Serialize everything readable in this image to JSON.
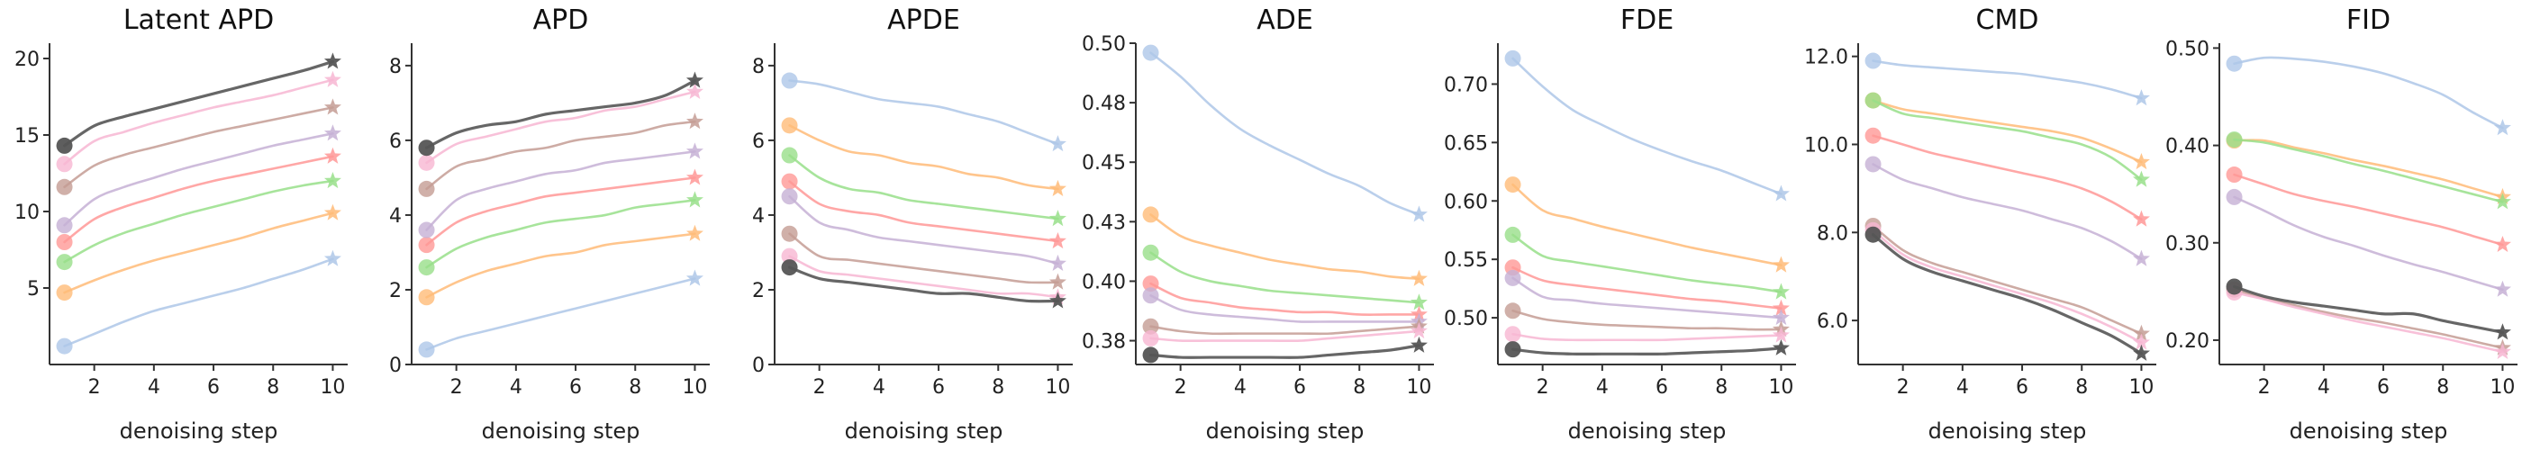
{
  "figure": {
    "xlabel": "denoising step"
  },
  "series_colors": [
    "#aec7e8",
    "#ffbb78",
    "#98df8a",
    "#ff9896",
    "#c5b0d5",
    "#c49c94",
    "#f7b6d2",
    "#555555"
  ],
  "chart_data": [
    {
      "type": "line",
      "title": "Latent APD",
      "xlabel": "denoising step",
      "ylabel": "",
      "x": [
        1,
        2,
        3,
        4,
        5,
        6,
        7,
        8,
        9,
        10
      ],
      "xlim": [
        0.5,
        10.5
      ],
      "ylim": [
        0,
        21
      ],
      "yticks": [
        5,
        10,
        15,
        20
      ],
      "ytick_labels": [
        "5",
        "10",
        "15",
        "20"
      ],
      "xticks": [
        2,
        4,
        6,
        8,
        10
      ],
      "xtick_labels": [
        "2",
        "4",
        "6",
        "8",
        "10"
      ],
      "series": [
        {
          "values": [
            1.2,
            2.0,
            2.8,
            3.5,
            4.0,
            4.5,
            5.0,
            5.6,
            6.2,
            6.9
          ]
        },
        {
          "values": [
            4.7,
            5.5,
            6.2,
            6.8,
            7.3,
            7.8,
            8.3,
            8.9,
            9.4,
            9.9
          ]
        },
        {
          "values": [
            6.7,
            7.8,
            8.6,
            9.2,
            9.8,
            10.3,
            10.8,
            11.3,
            11.7,
            12.0
          ]
        },
        {
          "values": [
            8.0,
            9.5,
            10.3,
            10.9,
            11.5,
            12.0,
            12.4,
            12.8,
            13.2,
            13.6
          ]
        },
        {
          "values": [
            9.1,
            10.8,
            11.6,
            12.2,
            12.8,
            13.3,
            13.8,
            14.3,
            14.7,
            15.1
          ]
        },
        {
          "values": [
            11.6,
            13.0,
            13.7,
            14.2,
            14.7,
            15.2,
            15.6,
            16.0,
            16.4,
            16.8
          ]
        },
        {
          "values": [
            13.1,
            14.6,
            15.2,
            15.8,
            16.3,
            16.8,
            17.2,
            17.6,
            18.1,
            18.6
          ]
        },
        {
          "values": [
            14.3,
            15.6,
            16.2,
            16.7,
            17.2,
            17.7,
            18.2,
            18.7,
            19.2,
            19.8
          ]
        }
      ]
    },
    {
      "type": "line",
      "title": "APD",
      "xlabel": "denoising step",
      "ylabel": "",
      "x": [
        1,
        2,
        3,
        4,
        5,
        6,
        7,
        8,
        9,
        10
      ],
      "xlim": [
        0.5,
        10.5
      ],
      "ylim": [
        0,
        8.6
      ],
      "yticks": [
        0,
        2,
        4,
        6,
        8
      ],
      "ytick_labels": [
        "0",
        "2",
        "4",
        "6",
        "8"
      ],
      "xticks": [
        2,
        4,
        6,
        8,
        10
      ],
      "xtick_labels": [
        "2",
        "4",
        "6",
        "8",
        "10"
      ],
      "series": [
        {
          "values": [
            0.4,
            0.7,
            0.9,
            1.1,
            1.3,
            1.5,
            1.7,
            1.9,
            2.1,
            2.3
          ]
        },
        {
          "values": [
            1.8,
            2.2,
            2.5,
            2.7,
            2.9,
            3.0,
            3.2,
            3.3,
            3.4,
            3.5
          ]
        },
        {
          "values": [
            2.6,
            3.1,
            3.4,
            3.6,
            3.8,
            3.9,
            4.0,
            4.2,
            4.3,
            4.4
          ]
        },
        {
          "values": [
            3.2,
            3.8,
            4.1,
            4.3,
            4.5,
            4.6,
            4.7,
            4.8,
            4.9,
            5.0
          ]
        },
        {
          "values": [
            3.6,
            4.4,
            4.7,
            4.9,
            5.1,
            5.2,
            5.4,
            5.5,
            5.6,
            5.7
          ]
        },
        {
          "values": [
            4.7,
            5.3,
            5.5,
            5.7,
            5.8,
            6.0,
            6.1,
            6.2,
            6.4,
            6.5
          ]
        },
        {
          "values": [
            5.4,
            5.9,
            6.1,
            6.3,
            6.5,
            6.6,
            6.8,
            6.9,
            7.1,
            7.3
          ]
        },
        {
          "values": [
            5.8,
            6.2,
            6.4,
            6.5,
            6.7,
            6.8,
            6.9,
            7.0,
            7.2,
            7.6
          ]
        }
      ]
    },
    {
      "type": "line",
      "title": "APDE",
      "xlabel": "denoising step",
      "ylabel": "",
      "x": [
        1,
        2,
        3,
        4,
        5,
        6,
        7,
        8,
        9,
        10
      ],
      "xlim": [
        0.5,
        10.5
      ],
      "ylim": [
        0,
        8.6
      ],
      "yticks": [
        0,
        2,
        4,
        6,
        8
      ],
      "ytick_labels": [
        "0",
        "2",
        "4",
        "6",
        "8"
      ],
      "xticks": [
        2,
        4,
        6,
        8,
        10
      ],
      "xtick_labels": [
        "2",
        "4",
        "6",
        "8",
        "10"
      ],
      "series": [
        {
          "values": [
            7.6,
            7.5,
            7.3,
            7.1,
            7.0,
            6.9,
            6.7,
            6.5,
            6.2,
            5.9
          ]
        },
        {
          "values": [
            6.4,
            6.0,
            5.7,
            5.6,
            5.4,
            5.3,
            5.1,
            5.0,
            4.8,
            4.7
          ]
        },
        {
          "values": [
            5.6,
            5.0,
            4.7,
            4.6,
            4.4,
            4.3,
            4.2,
            4.1,
            4.0,
            3.9
          ]
        },
        {
          "values": [
            4.9,
            4.3,
            4.1,
            4.0,
            3.8,
            3.7,
            3.6,
            3.5,
            3.4,
            3.3
          ]
        },
        {
          "values": [
            4.5,
            3.8,
            3.6,
            3.4,
            3.3,
            3.2,
            3.1,
            3.0,
            2.9,
            2.7
          ]
        },
        {
          "values": [
            3.5,
            2.9,
            2.8,
            2.7,
            2.6,
            2.5,
            2.4,
            2.3,
            2.2,
            2.2
          ]
        },
        {
          "values": [
            2.9,
            2.5,
            2.4,
            2.3,
            2.2,
            2.1,
            2.0,
            1.9,
            1.9,
            1.8
          ]
        },
        {
          "values": [
            2.6,
            2.3,
            2.2,
            2.1,
            2.0,
            1.9,
            1.9,
            1.8,
            1.7,
            1.7
          ]
        }
      ]
    },
    {
      "type": "line",
      "title": "ADE",
      "xlabel": "denoising step",
      "ylabel": "",
      "x": [
        1,
        2,
        3,
        4,
        5,
        6,
        7,
        8,
        9,
        10
      ],
      "xlim": [
        0.5,
        10.5
      ],
      "ylim": [
        0.365,
        0.5
      ],
      "yticks": [
        0.375,
        0.4,
        0.425,
        0.45,
        0.475,
        0.5
      ],
      "ytick_labels": [
        "0.38",
        "0.40",
        "0.43",
        "0.45",
        "0.48",
        "0.50"
      ],
      "xticks": [
        2,
        4,
        6,
        8,
        10
      ],
      "xtick_labels": [
        "2",
        "4",
        "6",
        "8",
        "10"
      ],
      "series": [
        {
          "values": [
            0.496,
            0.486,
            0.474,
            0.464,
            0.457,
            0.451,
            0.445,
            0.44,
            0.433,
            0.428
          ]
        },
        {
          "values": [
            0.428,
            0.419,
            0.415,
            0.412,
            0.409,
            0.407,
            0.405,
            0.404,
            0.402,
            0.401
          ]
        },
        {
          "values": [
            0.412,
            0.404,
            0.4,
            0.398,
            0.396,
            0.395,
            0.394,
            0.393,
            0.392,
            0.391
          ]
        },
        {
          "values": [
            0.399,
            0.393,
            0.391,
            0.389,
            0.388,
            0.387,
            0.387,
            0.386,
            0.386,
            0.386
          ]
        },
        {
          "values": [
            0.394,
            0.388,
            0.386,
            0.385,
            0.384,
            0.383,
            0.383,
            0.383,
            0.383,
            0.383
          ]
        },
        {
          "values": [
            0.381,
            0.379,
            0.378,
            0.378,
            0.378,
            0.378,
            0.378,
            0.379,
            0.38,
            0.381
          ]
        },
        {
          "values": [
            0.376,
            0.375,
            0.375,
            0.375,
            0.375,
            0.375,
            0.376,
            0.377,
            0.378,
            0.379
          ]
        },
        {
          "values": [
            0.369,
            0.368,
            0.368,
            0.368,
            0.368,
            0.368,
            0.369,
            0.37,
            0.371,
            0.373
          ]
        }
      ]
    },
    {
      "type": "line",
      "title": "FDE",
      "xlabel": "denoising step",
      "ylabel": "",
      "x": [
        1,
        2,
        3,
        4,
        5,
        6,
        7,
        8,
        9,
        10
      ],
      "xlim": [
        0.5,
        10.5
      ],
      "ylim": [
        0.46,
        0.735
      ],
      "yticks": [
        0.5,
        0.55,
        0.6,
        0.65,
        0.7
      ],
      "ytick_labels": [
        "0.50",
        "0.55",
        "0.60",
        "0.65",
        "0.70"
      ],
      "xticks": [
        2,
        4,
        6,
        8,
        10
      ],
      "xtick_labels": [
        "2",
        "4",
        "6",
        "8",
        "10"
      ],
      "series": [
        {
          "values": [
            0.722,
            0.698,
            0.678,
            0.665,
            0.653,
            0.643,
            0.634,
            0.626,
            0.616,
            0.606
          ]
        },
        {
          "values": [
            0.614,
            0.592,
            0.585,
            0.578,
            0.572,
            0.566,
            0.56,
            0.555,
            0.55,
            0.545
          ]
        },
        {
          "values": [
            0.571,
            0.553,
            0.548,
            0.544,
            0.54,
            0.536,
            0.532,
            0.529,
            0.526,
            0.522
          ]
        },
        {
          "values": [
            0.543,
            0.532,
            0.528,
            0.525,
            0.522,
            0.519,
            0.516,
            0.514,
            0.511,
            0.508
          ]
        },
        {
          "values": [
            0.534,
            0.518,
            0.515,
            0.512,
            0.51,
            0.508,
            0.506,
            0.504,
            0.502,
            0.5
          ]
        },
        {
          "values": [
            0.506,
            0.499,
            0.496,
            0.494,
            0.493,
            0.492,
            0.491,
            0.491,
            0.49,
            0.49
          ]
        },
        {
          "values": [
            0.486,
            0.482,
            0.481,
            0.481,
            0.481,
            0.481,
            0.482,
            0.483,
            0.484,
            0.485
          ]
        },
        {
          "values": [
            0.473,
            0.47,
            0.469,
            0.469,
            0.469,
            0.469,
            0.47,
            0.471,
            0.472,
            0.474
          ]
        }
      ]
    },
    {
      "type": "line",
      "title": "CMD",
      "xlabel": "denoising step",
      "ylabel": "",
      "x": [
        1,
        2,
        3,
        4,
        5,
        6,
        7,
        8,
        9,
        10
      ],
      "xlim": [
        0.5,
        10.5
      ],
      "ylim": [
        5.0,
        12.3
      ],
      "yticks": [
        6,
        8,
        10,
        12
      ],
      "ytick_labels": [
        "6.0",
        "8.0",
        "10.0",
        "12.0"
      ],
      "xticks": [
        2,
        4,
        6,
        8,
        10
      ],
      "xtick_labels": [
        "2",
        "4",
        "6",
        "8",
        "10"
      ],
      "series": [
        {
          "values": [
            11.9,
            11.8,
            11.75,
            11.7,
            11.65,
            11.6,
            11.5,
            11.4,
            11.25,
            11.05
          ]
        },
        {
          "values": [
            11.0,
            10.8,
            10.7,
            10.6,
            10.5,
            10.4,
            10.3,
            10.15,
            9.9,
            9.6
          ]
        },
        {
          "values": [
            11.0,
            10.7,
            10.6,
            10.5,
            10.4,
            10.3,
            10.15,
            10.0,
            9.7,
            9.2
          ]
        },
        {
          "values": [
            10.2,
            10.0,
            9.8,
            9.65,
            9.5,
            9.35,
            9.2,
            9.0,
            8.7,
            8.3
          ]
        },
        {
          "values": [
            9.55,
            9.2,
            9.0,
            8.8,
            8.65,
            8.5,
            8.3,
            8.1,
            7.8,
            7.4
          ]
        },
        {
          "values": [
            8.15,
            7.6,
            7.3,
            7.1,
            6.9,
            6.7,
            6.5,
            6.3,
            6.0,
            5.7
          ]
        },
        {
          "values": [
            8.05,
            7.5,
            7.2,
            7.0,
            6.8,
            6.6,
            6.4,
            6.15,
            5.85,
            5.5
          ]
        },
        {
          "values": [
            7.95,
            7.4,
            7.1,
            6.9,
            6.7,
            6.5,
            6.25,
            5.95,
            5.65,
            5.25
          ]
        }
      ]
    },
    {
      "type": "line",
      "title": "FID",
      "xlabel": "denoising step",
      "ylabel": "",
      "x": [
        1,
        2,
        3,
        4,
        5,
        6,
        7,
        8,
        9,
        10
      ],
      "xlim": [
        0.5,
        10.5
      ],
      "ylim": [
        0.175,
        0.505
      ],
      "yticks": [
        0.2,
        0.3,
        0.4,
        0.5
      ],
      "ytick_labels": [
        "0.20",
        "0.30",
        "0.40",
        "0.50"
      ],
      "xticks": [
        2,
        4,
        6,
        8,
        10
      ],
      "xtick_labels": [
        "2",
        "4",
        "6",
        "8",
        "10"
      ],
      "series": [
        {
          "values": [
            0.484,
            0.49,
            0.489,
            0.486,
            0.481,
            0.474,
            0.464,
            0.452,
            0.434,
            0.418
          ]
        },
        {
          "values": [
            0.405,
            0.405,
            0.398,
            0.392,
            0.385,
            0.379,
            0.372,
            0.365,
            0.356,
            0.347
          ]
        },
        {
          "values": [
            0.406,
            0.403,
            0.396,
            0.389,
            0.381,
            0.374,
            0.366,
            0.358,
            0.35,
            0.342
          ]
        },
        {
          "values": [
            0.37,
            0.36,
            0.35,
            0.343,
            0.337,
            0.33,
            0.323,
            0.316,
            0.307,
            0.298
          ]
        },
        {
          "values": [
            0.347,
            0.333,
            0.318,
            0.306,
            0.297,
            0.287,
            0.278,
            0.27,
            0.261,
            0.252
          ]
        },
        {
          "values": [
            0.252,
            0.243,
            0.236,
            0.229,
            0.223,
            0.218,
            0.212,
            0.206,
            0.199,
            0.192
          ]
        },
        {
          "values": [
            0.249,
            0.242,
            0.234,
            0.227,
            0.22,
            0.214,
            0.208,
            0.202,
            0.195,
            0.188
          ]
        },
        {
          "values": [
            0.255,
            0.245,
            0.239,
            0.235,
            0.231,
            0.227,
            0.227,
            0.22,
            0.214,
            0.208
          ]
        }
      ]
    }
  ]
}
